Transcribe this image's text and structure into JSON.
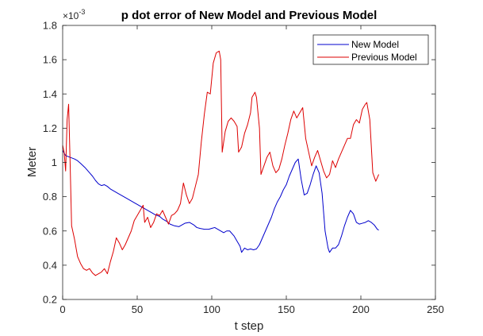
{
  "chart_data": {
    "type": "line",
    "title": "p dot error of New Model and Previous Model",
    "xlabel": "t step",
    "ylabel": "Meter",
    "y_exponent_base": "×10",
    "y_exponent_power": "-3",
    "xlim": [
      0,
      250
    ],
    "ylim": [
      0.2,
      1.8
    ],
    "xticks": [
      0,
      50,
      100,
      150,
      200,
      250
    ],
    "yticks": [
      0.2,
      0.4,
      0.6,
      0.8,
      1,
      1.2,
      1.4,
      1.6,
      1.8
    ],
    "xtick_labels": [
      "0",
      "50",
      "100",
      "150",
      "200",
      "250"
    ],
    "ytick_labels": [
      "0.2",
      "0.4",
      "0.6",
      "0.8",
      "1",
      "1.2",
      "1.4",
      "1.6",
      "1.8"
    ],
    "grid": false,
    "legend_position": "top-right",
    "series": [
      {
        "name": "New Model",
        "color": "#0000cc",
        "points": [
          [
            0,
            1.07
          ],
          [
            2,
            1.04
          ],
          [
            5,
            1.03
          ],
          [
            8,
            1.02
          ],
          [
            10,
            1.01
          ],
          [
            12,
            0.995
          ],
          [
            15,
            0.97
          ],
          [
            18,
            0.94
          ],
          [
            20,
            0.92
          ],
          [
            22,
            0.895
          ],
          [
            24,
            0.875
          ],
          [
            26,
            0.865
          ],
          [
            28,
            0.87
          ],
          [
            30,
            0.86
          ],
          [
            32,
            0.845
          ],
          [
            35,
            0.83
          ],
          [
            38,
            0.815
          ],
          [
            40,
            0.805
          ],
          [
            42,
            0.795
          ],
          [
            45,
            0.78
          ],
          [
            48,
            0.765
          ],
          [
            50,
            0.755
          ],
          [
            53,
            0.74
          ],
          [
            55,
            0.73
          ],
          [
            58,
            0.715
          ],
          [
            60,
            0.705
          ],
          [
            62,
            0.695
          ],
          [
            65,
            0.685
          ],
          [
            67,
            0.67
          ],
          [
            70,
            0.655
          ],
          [
            72,
            0.64
          ],
          [
            75,
            0.63
          ],
          [
            78,
            0.625
          ],
          [
            80,
            0.635
          ],
          [
            82,
            0.645
          ],
          [
            85,
            0.65
          ],
          [
            88,
            0.635
          ],
          [
            90,
            0.62
          ],
          [
            92,
            0.615
          ],
          [
            95,
            0.61
          ],
          [
            98,
            0.61
          ],
          [
            100,
            0.615
          ],
          [
            102,
            0.62
          ],
          [
            105,
            0.605
          ],
          [
            108,
            0.59
          ],
          [
            110,
            0.6
          ],
          [
            112,
            0.6
          ],
          [
            115,
            0.57
          ],
          [
            117,
            0.54
          ],
          [
            119,
            0.51
          ],
          [
            120,
            0.475
          ],
          [
            122,
            0.5
          ],
          [
            124,
            0.49
          ],
          [
            126,
            0.495
          ],
          [
            128,
            0.49
          ],
          [
            130,
            0.495
          ],
          [
            132,
            0.52
          ],
          [
            134,
            0.56
          ],
          [
            136,
            0.6
          ],
          [
            138,
            0.64
          ],
          [
            140,
            0.68
          ],
          [
            142,
            0.73
          ],
          [
            144,
            0.77
          ],
          [
            146,
            0.8
          ],
          [
            148,
            0.84
          ],
          [
            150,
            0.87
          ],
          [
            152,
            0.92
          ],
          [
            154,
            0.96
          ],
          [
            156,
            1.0
          ],
          [
            158,
            1.02
          ],
          [
            160,
            0.9
          ],
          [
            162,
            0.81
          ],
          [
            164,
            0.82
          ],
          [
            166,
            0.87
          ],
          [
            168,
            0.93
          ],
          [
            170,
            0.98
          ],
          [
            172,
            0.94
          ],
          [
            174,
            0.82
          ],
          [
            176,
            0.6
          ],
          [
            178,
            0.5
          ],
          [
            179,
            0.475
          ],
          [
            181,
            0.5
          ],
          [
            183,
            0.5
          ],
          [
            185,
            0.52
          ],
          [
            187,
            0.57
          ],
          [
            189,
            0.63
          ],
          [
            191,
            0.68
          ],
          [
            193,
            0.72
          ],
          [
            195,
            0.7
          ],
          [
            197,
            0.65
          ],
          [
            199,
            0.64
          ],
          [
            201,
            0.645
          ],
          [
            203,
            0.65
          ],
          [
            205,
            0.66
          ],
          [
            207,
            0.65
          ],
          [
            209,
            0.635
          ],
          [
            211,
            0.61
          ],
          [
            212,
            0.605
          ]
        ]
      },
      {
        "name": "Previous Model",
        "color": "#dd0000",
        "points": [
          [
            0,
            1.1
          ],
          [
            1,
            1.06
          ],
          [
            2,
            0.95
          ],
          [
            3,
            1.25
          ],
          [
            4,
            1.34
          ],
          [
            5,
            1.0
          ],
          [
            6,
            0.63
          ],
          [
            8,
            0.55
          ],
          [
            10,
            0.45
          ],
          [
            12,
            0.41
          ],
          [
            14,
            0.38
          ],
          [
            16,
            0.37
          ],
          [
            18,
            0.38
          ],
          [
            20,
            0.355
          ],
          [
            22,
            0.34
          ],
          [
            24,
            0.35
          ],
          [
            26,
            0.36
          ],
          [
            28,
            0.38
          ],
          [
            30,
            0.35
          ],
          [
            32,
            0.42
          ],
          [
            34,
            0.48
          ],
          [
            36,
            0.56
          ],
          [
            38,
            0.53
          ],
          [
            40,
            0.49
          ],
          [
            42,
            0.52
          ],
          [
            44,
            0.56
          ],
          [
            46,
            0.6
          ],
          [
            48,
            0.66
          ],
          [
            50,
            0.69
          ],
          [
            52,
            0.72
          ],
          [
            54,
            0.75
          ],
          [
            55,
            0.65
          ],
          [
            57,
            0.68
          ],
          [
            59,
            0.62
          ],
          [
            61,
            0.65
          ],
          [
            63,
            0.7
          ],
          [
            65,
            0.69
          ],
          [
            67,
            0.72
          ],
          [
            69,
            0.68
          ],
          [
            71,
            0.64
          ],
          [
            73,
            0.69
          ],
          [
            75,
            0.7
          ],
          [
            77,
            0.72
          ],
          [
            79,
            0.76
          ],
          [
            81,
            0.88
          ],
          [
            83,
            0.81
          ],
          [
            85,
            0.76
          ],
          [
            87,
            0.79
          ],
          [
            89,
            0.86
          ],
          [
            91,
            0.93
          ],
          [
            93,
            1.12
          ],
          [
            95,
            1.28
          ],
          [
            97,
            1.41
          ],
          [
            99,
            1.4
          ],
          [
            101,
            1.58
          ],
          [
            103,
            1.64
          ],
          [
            105,
            1.65
          ],
          [
            106,
            1.6
          ],
          [
            107,
            1.06
          ],
          [
            109,
            1.18
          ],
          [
            111,
            1.24
          ],
          [
            113,
            1.26
          ],
          [
            115,
            1.24
          ],
          [
            117,
            1.21
          ],
          [
            118,
            1.06
          ],
          [
            120,
            1.09
          ],
          [
            122,
            1.17
          ],
          [
            124,
            1.22
          ],
          [
            126,
            1.29
          ],
          [
            127,
            1.38
          ],
          [
            129,
            1.41
          ],
          [
            130,
            1.38
          ],
          [
            132,
            1.2
          ],
          [
            133,
            0.93
          ],
          [
            135,
            0.98
          ],
          [
            137,
            1.03
          ],
          [
            139,
            1.06
          ],
          [
            141,
            0.98
          ],
          [
            143,
            0.94
          ],
          [
            145,
            0.96
          ],
          [
            147,
            1.02
          ],
          [
            149,
            1.1
          ],
          [
            151,
            1.17
          ],
          [
            153,
            1.25
          ],
          [
            155,
            1.3
          ],
          [
            157,
            1.26
          ],
          [
            159,
            1.29
          ],
          [
            161,
            1.32
          ],
          [
            163,
            1.14
          ],
          [
            165,
            1.06
          ],
          [
            167,
            0.98
          ],
          [
            169,
            1.03
          ],
          [
            171,
            1.07
          ],
          [
            173,
            1.01
          ],
          [
            175,
            0.95
          ],
          [
            177,
            0.91
          ],
          [
            179,
            0.93
          ],
          [
            181,
            1.01
          ],
          [
            183,
            0.97
          ],
          [
            185,
            1.02
          ],
          [
            187,
            1.06
          ],
          [
            189,
            1.1
          ],
          [
            191,
            1.14
          ],
          [
            193,
            1.14
          ],
          [
            195,
            1.22
          ],
          [
            197,
            1.25
          ],
          [
            199,
            1.23
          ],
          [
            201,
            1.31
          ],
          [
            203,
            1.34
          ],
          [
            204,
            1.35
          ],
          [
            206,
            1.25
          ],
          [
            208,
            0.94
          ],
          [
            210,
            0.89
          ],
          [
            212,
            0.93
          ]
        ]
      }
    ]
  }
}
